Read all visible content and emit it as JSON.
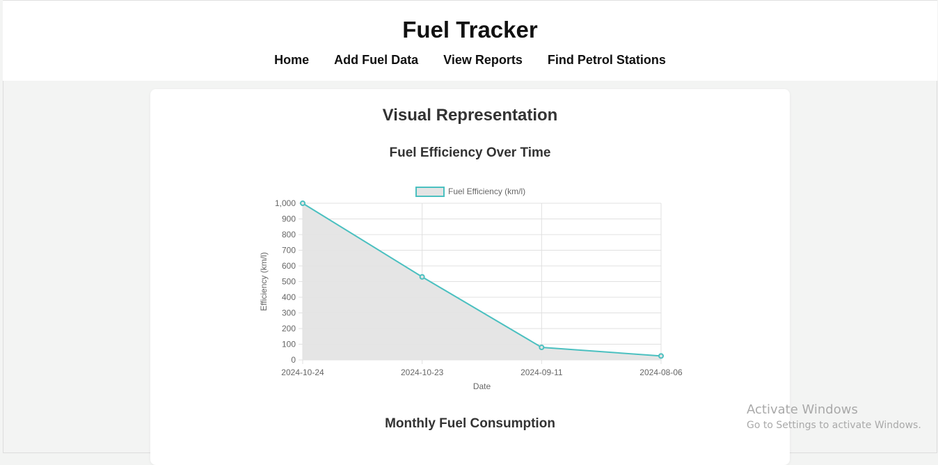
{
  "header": {
    "title": "Fuel Tracker",
    "nav": [
      "Home",
      "Add Fuel Data",
      "View Reports",
      "Find Petrol Stations"
    ]
  },
  "card": {
    "title": "Visual Representation",
    "chart_heading": "Fuel Efficiency Over Time",
    "next_heading": "Monthly Fuel Consumption"
  },
  "chart_data": {
    "type": "line",
    "categories": [
      "2024-10-24",
      "2024-10-23",
      "2024-09-11",
      "2024-08-06"
    ],
    "series": [
      {
        "name": "Fuel Efficiency (km/l)",
        "values": [
          1000,
          530,
          80,
          25
        ]
      }
    ],
    "xlabel": "Date",
    "ylabel": "Efficiency (km/l)",
    "ylim": [
      0,
      1000
    ],
    "yticks": [
      "0",
      "100",
      "200",
      "300",
      "400",
      "500",
      "600",
      "700",
      "800",
      "900",
      "1,000"
    ],
    "grid": true,
    "filled": true,
    "legend": "top",
    "colors": {
      "line": "#4bc0c0",
      "fill": "#e4e4e4",
      "grid": "#e0e0e0"
    }
  },
  "watermark": {
    "line1": "Activate Windows",
    "line2": "Go to Settings to activate Windows."
  }
}
